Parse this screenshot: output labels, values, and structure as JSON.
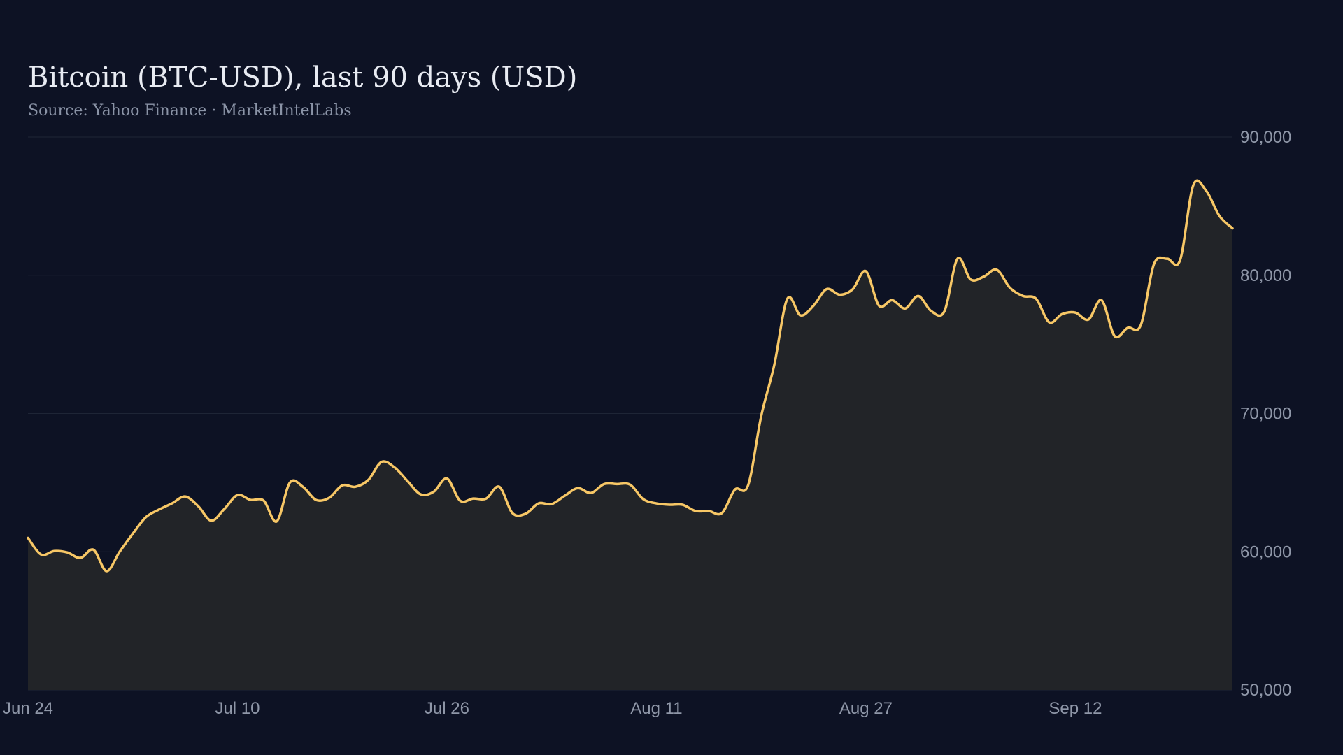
{
  "chart_data": {
    "type": "area",
    "title": "Bitcoin (BTC-USD), last 90 days (USD)",
    "subtitle": "Source: Yahoo Finance · MarketIntelLabs",
    "xlabel": "",
    "ylabel": "",
    "ylim": [
      50000,
      90000
    ],
    "y_ticks": [
      90000,
      80000,
      70000,
      60000,
      50000
    ],
    "y_tick_labels": [
      "90,000",
      "80,000",
      "70,000",
      "60,000",
      "50,000"
    ],
    "x_ticks": [
      "Jun 24",
      "Jul 10",
      "Jul 26",
      "Aug 11",
      "Aug 27",
      "Sep 12"
    ],
    "x_tick_day_index": [
      0,
      16,
      32,
      48,
      64,
      80
    ],
    "grid": true,
    "line_color": "#f7c766",
    "fill_color": "#222428",
    "series": [
      {
        "values": [
          61000,
          59800,
          60050,
          59950,
          59550,
          60150,
          58600,
          60000,
          61300,
          62500,
          63050,
          63500,
          64000,
          63300,
          62250,
          63100,
          64100,
          63750,
          63700,
          62200,
          65000,
          64700,
          63750,
          63900,
          64800,
          64700,
          65200,
          66500,
          66100,
          65100,
          64150,
          64350,
          65300,
          63700,
          63850,
          63850,
          64700,
          62800,
          62750,
          63500,
          63450,
          64050,
          64600,
          64250,
          64900,
          64900,
          64850,
          63800,
          63500,
          63400,
          63400,
          62950,
          62950,
          62800,
          64500,
          64800,
          69800,
          73500,
          78300,
          77100,
          77800,
          79000,
          78600,
          79000,
          80300,
          77800,
          78200,
          77600,
          78500,
          77400,
          77400,
          81200,
          79700,
          79900,
          80400,
          79100,
          78500,
          78300,
          76600,
          77200,
          77300,
          76800,
          78200,
          75600,
          76200,
          76400,
          80800,
          81200,
          81100,
          86500,
          86100,
          84300,
          83400
        ]
      }
    ]
  }
}
